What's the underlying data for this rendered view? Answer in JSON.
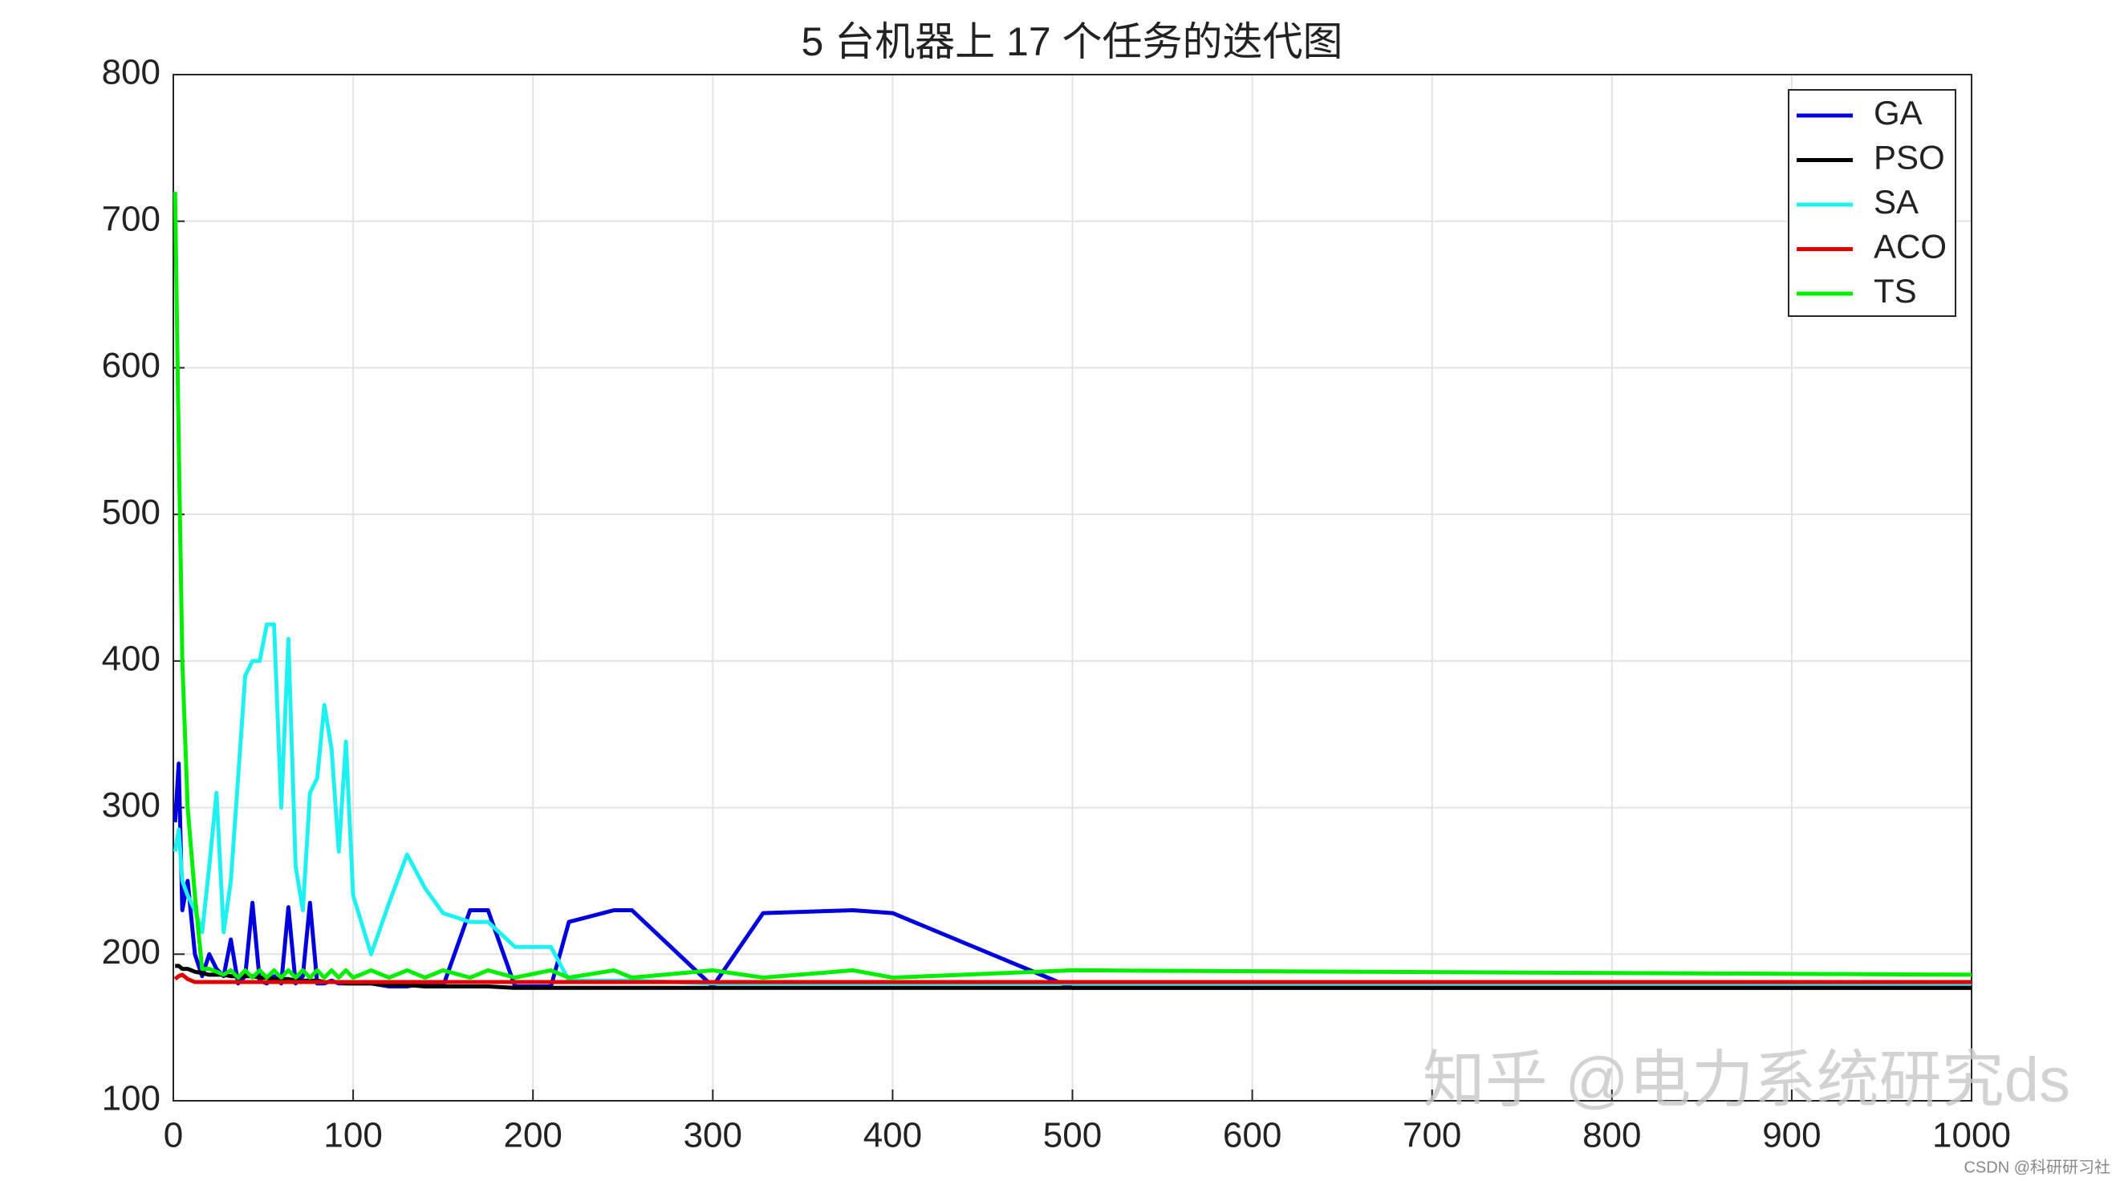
{
  "chart_data": {
    "type": "line",
    "title": "5 台机器上 17 个任务的迭代图",
    "x": [
      1,
      3,
      5,
      8,
      12,
      16,
      20,
      24,
      28,
      32,
      36,
      40,
      44,
      48,
      52,
      56,
      60,
      64,
      68,
      72,
      76,
      80,
      84,
      88,
      92,
      96,
      100,
      110,
      120,
      130,
      140,
      150,
      165,
      175,
      190,
      210,
      220,
      245,
      255,
      300,
      328,
      378,
      400,
      500,
      1000
    ],
    "series": [
      {
        "name": "GA",
        "color": "#0000dd",
        "values": [
          290,
          330,
          230,
          250,
          200,
          185,
          200,
          190,
          185,
          210,
          180,
          185,
          235,
          182,
          180,
          185,
          180,
          232,
          180,
          185,
          235,
          180,
          180,
          182,
          180,
          180,
          180,
          180,
          178,
          178,
          180,
          178,
          230,
          230,
          178,
          178,
          222,
          230,
          230,
          178,
          228,
          230,
          228,
          177,
          177
        ]
      },
      {
        "name": "PSO",
        "color": "#000000",
        "values": [
          192,
          192,
          190,
          190,
          188,
          187,
          186,
          186,
          186,
          185,
          185,
          185,
          185,
          184,
          184,
          183,
          183,
          183,
          182,
          182,
          182,
          182,
          181,
          181,
          181,
          180,
          180,
          180,
          179,
          179,
          178,
          178,
          178,
          178,
          177,
          177,
          177,
          177,
          177,
          177,
          177,
          177,
          177,
          177,
          177
        ]
      },
      {
        "name": "SA",
        "color": "#1ff0f0",
        "values": [
          270,
          285,
          250,
          240,
          230,
          215,
          260,
          310,
          215,
          250,
          320,
          390,
          400,
          400,
          425,
          425,
          300,
          415,
          260,
          230,
          310,
          320,
          370,
          340,
          270,
          345,
          240,
          200,
          235,
          268,
          245,
          228,
          222,
          222,
          205,
          205,
          182,
          182,
          182,
          180,
          180,
          180,
          180,
          180,
          180
        ]
      },
      {
        "name": "ACO",
        "color": "#e00000",
        "values": [
          183,
          185,
          186,
          183,
          181,
          181,
          181,
          181,
          181,
          181,
          181,
          181,
          181,
          181,
          181,
          181,
          181,
          181,
          181,
          181,
          181,
          181,
          181,
          181,
          181,
          181,
          181,
          181,
          181,
          181,
          181,
          181,
          181,
          181,
          181,
          181,
          181,
          181,
          181,
          181,
          181,
          181,
          181,
          181,
          181
        ]
      },
      {
        "name": "TS",
        "color": "#00ee00",
        "values": [
          720,
          550,
          400,
          300,
          240,
          190,
          190,
          188,
          186,
          189,
          184,
          189,
          184,
          189,
          184,
          189,
          184,
          189,
          184,
          189,
          184,
          189,
          184,
          189,
          184,
          189,
          184,
          189,
          184,
          189,
          184,
          189,
          184,
          189,
          184,
          189,
          184,
          189,
          184,
          189,
          184,
          189,
          184,
          189,
          186
        ]
      }
    ],
    "xlim": [
      0,
      1000
    ],
    "xticks": [
      0,
      100,
      200,
      300,
      400,
      500,
      600,
      700,
      800,
      900,
      1000
    ],
    "ylim": [
      100,
      800
    ],
    "yticks": [
      100,
      200,
      300,
      400,
      500,
      600,
      700,
      800
    ],
    "grid": true,
    "legend": "northeast",
    "watermarks": [
      "知乎 @电力系统研究ds",
      "CSDN @科研研习社"
    ]
  }
}
